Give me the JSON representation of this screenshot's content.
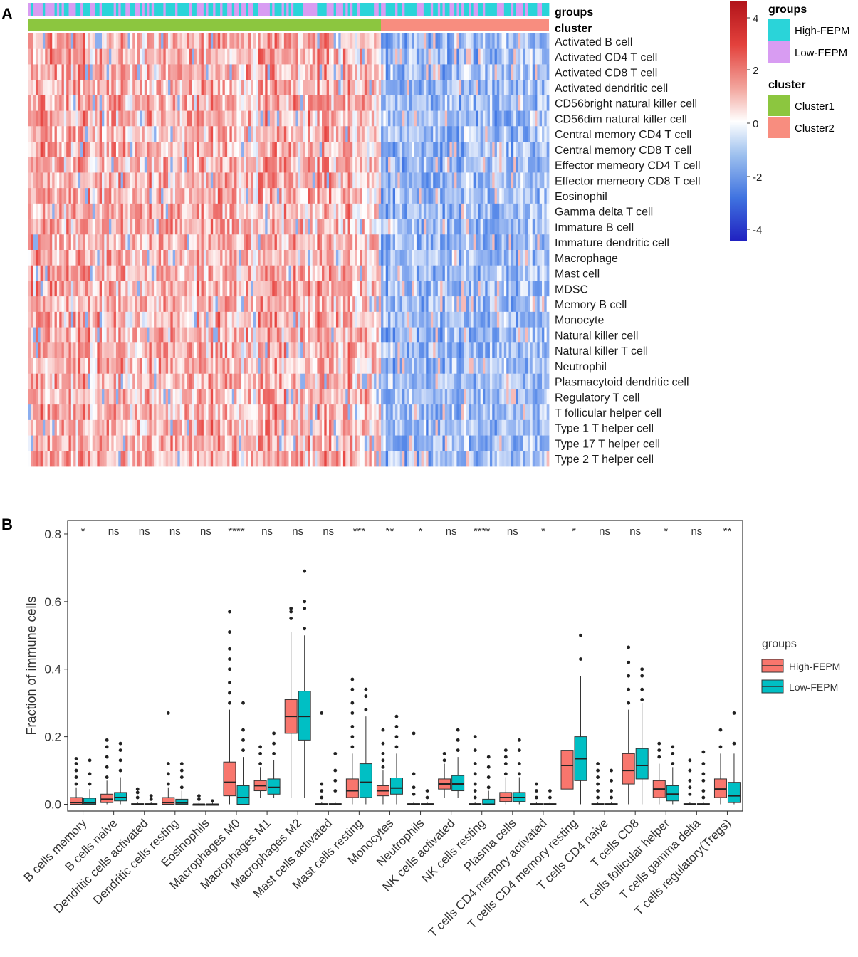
{
  "panel_a": {
    "label": "A",
    "row_labels": [
      "Activated B cell",
      "Activated CD4 T cell",
      "Activated CD8 T cell",
      "Activated dendritic cell",
      "CD56bright natural killer cell",
      "CD56dim natural killer cell",
      "Central memory CD4 T cell",
      "Central memory CD8 T cell",
      "Effector memeory CD4 T cell",
      "Effector memeory CD8 T cell",
      "Eosinophil",
      "Gamma delta T cell",
      "Immature  B cell",
      "Immature dendritic cell",
      "Macrophage",
      "Mast cell",
      "MDSC",
      "Memory B cell",
      "Monocyte",
      "Natural killer cell",
      "Natural killer T cell",
      "Neutrophil",
      "Plasmacytoid dendritic cell",
      "Regulatory T cell",
      "T follicular helper cell",
      "Type 1 T helper cell",
      "Type 17 T helper cell",
      "Type 2 T helper cell"
    ],
    "annotation_labels": [
      "groups",
      "cluster"
    ],
    "color_scale": {
      "ticks": [
        "4",
        "2",
        "0",
        "-2",
        "-4"
      ],
      "high": "#d7191c",
      "mid": "#ffffff",
      "low": "#2020c8"
    },
    "legend_groups": {
      "title": "groups",
      "items": [
        {
          "label": "High-FEPM",
          "color": "#2ad4d9"
        },
        {
          "label": "Low-FEPM",
          "color": "#d89cf2"
        }
      ]
    },
    "legend_cluster": {
      "title": "cluster",
      "items": [
        {
          "label": "Cluster1",
          "color": "#8cc63f"
        },
        {
          "label": "Cluster2",
          "color": "#f88d7f"
        }
      ]
    }
  },
  "panel_b": {
    "label": "B",
    "legend": {
      "title": "groups",
      "items": [
        {
          "label": "High-FEPM",
          "color": "#f8766d"
        },
        {
          "label": "Low-FEPM",
          "color": "#00bfc4"
        }
      ]
    }
  },
  "chart_data": {
    "type": "boxplot",
    "ylabel": "Fraction of immune cells",
    "ylim": [
      -0.02,
      0.84
    ],
    "yticks": [
      "0.0",
      "0.2",
      "0.4",
      "0.6",
      "0.8"
    ],
    "categories": [
      "B cells memory",
      "B cells naive",
      "Dendritic cells activated",
      "Dendritic cells resting",
      "Eosinophils",
      "Macrophages M0",
      "Macrophages M1",
      "Macrophages M2",
      "Mast cells activated",
      "Mast cells resting",
      "Monocytes",
      "Neutrophils",
      "NK cells activated",
      "NK cells resting",
      "Plasma cells",
      "T cells CD4 memory activated",
      "T cells CD4 memory resting",
      "T cells CD4 naive",
      "T cells CD8",
      "T cells follicular helper",
      "T cells gamma delta",
      "T cells regulatory(Tregs)"
    ],
    "significance": [
      "*",
      "ns",
      "ns",
      "ns",
      "ns",
      "****",
      "ns",
      "ns",
      "ns",
      "***",
      "**",
      "*",
      "ns",
      "****",
      "ns",
      "*",
      "*",
      "ns",
      "ns",
      "*",
      "ns",
      "**"
    ],
    "series": [
      {
        "name": "High-FEPM",
        "boxes": [
          [
            0,
            0,
            0.005,
            0.02,
            0.05
          ],
          [
            0,
            0.005,
            0.015,
            0.03,
            0.07
          ],
          [
            0,
            0,
            0,
            0.002,
            0.005
          ],
          [
            0,
            0,
            0.005,
            0.02,
            0.05
          ],
          [
            0,
            0,
            0,
            0,
            0.005
          ],
          [
            0,
            0.025,
            0.065,
            0.125,
            0.28
          ],
          [
            0.02,
            0.04,
            0.055,
            0.07,
            0.11
          ],
          [
            0.02,
            0.21,
            0.26,
            0.31,
            0.51
          ],
          [
            0,
            0,
            0,
            0.002,
            0.005
          ],
          [
            0,
            0.02,
            0.04,
            0.075,
            0.15
          ],
          [
            0,
            0.025,
            0.04,
            0.055,
            0.1
          ],
          [
            0,
            0,
            0,
            0.002,
            0.005
          ],
          [
            0.02,
            0.045,
            0.06,
            0.075,
            0.12
          ],
          [
            0,
            0,
            0,
            0.002,
            0.005
          ],
          [
            0,
            0.008,
            0.02,
            0.035,
            0.08
          ],
          [
            0,
            0,
            0,
            0.002,
            0.005
          ],
          [
            0,
            0.045,
            0.115,
            0.16,
            0.34
          ],
          [
            0,
            0,
            0,
            0.002,
            0.005
          ],
          [
            0,
            0.06,
            0.1,
            0.15,
            0.28
          ],
          [
            0,
            0.02,
            0.045,
            0.07,
            0.12
          ],
          [
            0,
            0,
            0,
            0.002,
            0.005
          ],
          [
            0,
            0.02,
            0.045,
            0.075,
            0.15
          ]
        ],
        "outliers": [
          [
            0.06,
            0.08,
            0.1,
            0.12,
            0.135
          ],
          [
            0.08,
            0.11,
            0.14,
            0.17,
            0.19
          ],
          [
            0.02,
            0.035,
            0.045
          ],
          [
            0.06,
            0.09,
            0.12,
            0.27
          ],
          [
            0.015,
            0.025
          ],
          [
            0.3,
            0.33,
            0.36,
            0.4,
            0.43,
            0.46,
            0.51,
            0.57
          ],
          [
            0.12,
            0.15,
            0.17
          ],
          [
            0.55,
            0.57,
            0.58
          ],
          [
            0.02,
            0.04,
            0.06,
            0.27
          ],
          [
            0.17,
            0.2,
            0.23,
            0.27,
            0.3,
            0.34,
            0.37
          ],
          [
            0.11,
            0.13,
            0.15,
            0.18,
            0.22
          ],
          [
            0.03,
            0.05,
            0.09,
            0.21
          ],
          [
            0.13,
            0.15
          ],
          [
            0.02,
            0.04,
            0.06,
            0.09,
            0.12,
            0.16,
            0.2
          ],
          [
            0.09,
            0.12,
            0.14,
            0.16
          ],
          [
            0.02,
            0.04,
            0.06
          ],
          [],
          [
            0.02,
            0.04,
            0.06,
            0.08,
            0.1,
            0.12
          ],
          [
            0.3,
            0.34,
            0.38,
            0.42,
            0.465
          ],
          [
            0.14,
            0.16,
            0.18
          ],
          [
            0.03,
            0.05,
            0.07,
            0.1,
            0.13
          ],
          [
            0.17,
            0.22
          ]
        ]
      },
      {
        "name": "Low-FEPM",
        "boxes": [
          [
            0,
            0,
            0.004,
            0.018,
            0.045
          ],
          [
            0,
            0.01,
            0.02,
            0.035,
            0.08
          ],
          [
            0,
            0,
            0,
            0.002,
            0.005
          ],
          [
            0,
            0,
            0.004,
            0.015,
            0.04
          ],
          [
            0,
            0,
            0,
            0,
            0.005
          ],
          [
            0,
            0,
            0.02,
            0.055,
            0.14
          ],
          [
            0.02,
            0.03,
            0.05,
            0.075,
            0.13
          ],
          [
            0.02,
            0.19,
            0.26,
            0.335,
            0.5
          ],
          [
            0,
            0,
            0,
            0.002,
            0.005
          ],
          [
            0,
            0.02,
            0.065,
            0.12,
            0.26
          ],
          [
            0,
            0.03,
            0.048,
            0.078,
            0.15
          ],
          [
            0,
            0,
            0,
            0.002,
            0.005
          ],
          [
            0.02,
            0.04,
            0.06,
            0.085,
            0.14
          ],
          [
            0,
            0,
            0,
            0.015,
            0.04
          ],
          [
            0,
            0.008,
            0.02,
            0.035,
            0.08
          ],
          [
            0,
            0,
            0,
            0.002,
            0.005
          ],
          [
            0,
            0.07,
            0.135,
            0.2,
            0.38
          ],
          [
            0,
            0,
            0,
            0.002,
            0.005
          ],
          [
            0,
            0.075,
            0.115,
            0.165,
            0.3
          ],
          [
            0,
            0.01,
            0.03,
            0.055,
            0.11
          ],
          [
            0,
            0,
            0,
            0.002,
            0.005
          ],
          [
            0,
            0.005,
            0.025,
            0.065,
            0.15
          ]
        ],
        "outliers": [
          [
            0.06,
            0.09,
            0.13
          ],
          [
            0.1,
            0.13,
            0.16,
            0.18
          ],
          [
            0.015,
            0.025
          ],
          [
            0.05,
            0.08,
            0.1,
            0.12
          ],
          [
            0.01
          ],
          [
            0.16,
            0.19,
            0.22,
            0.3
          ],
          [
            0.15,
            0.18,
            0.21
          ],
          [
            0.52,
            0.58,
            0.6,
            0.69
          ],
          [
            0.04,
            0.07,
            0.1,
            0.15
          ],
          [
            0.28,
            0.32,
            0.34
          ],
          [
            0.17,
            0.2,
            0.23,
            0.26
          ],
          [
            0.02,
            0.04
          ],
          [
            0.16,
            0.19,
            0.22
          ],
          [
            0.05,
            0.08,
            0.11,
            0.14
          ],
          [
            0.09,
            0.12,
            0.16,
            0.19
          ],
          [
            0.02,
            0.04
          ],
          [
            0.43,
            0.5
          ],
          [
            0.02,
            0.04,
            0.07,
            0.1
          ],
          [
            0.31,
            0.34,
            0.38,
            0.4
          ],
          [
            0.12,
            0.15,
            0.17
          ],
          [
            0.02,
            0.04,
            0.07,
            0.09,
            0.12,
            0.155
          ],
          [
            0.18,
            0.27
          ]
        ]
      }
    ]
  }
}
